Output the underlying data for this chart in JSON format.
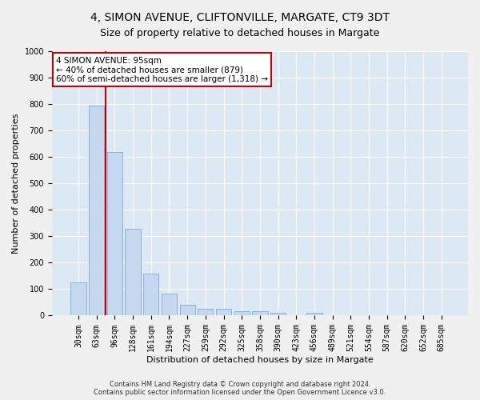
{
  "title": "4, SIMON AVENUE, CLIFTONVILLE, MARGATE, CT9 3DT",
  "subtitle": "Size of property relative to detached houses in Margate",
  "xlabel": "Distribution of detached houses by size in Margate",
  "ylabel": "Number of detached properties",
  "categories": [
    "30sqm",
    "63sqm",
    "96sqm",
    "128sqm",
    "161sqm",
    "194sqm",
    "227sqm",
    "259sqm",
    "292sqm",
    "325sqm",
    "358sqm",
    "390sqm",
    "423sqm",
    "456sqm",
    "489sqm",
    "521sqm",
    "554sqm",
    "587sqm",
    "620sqm",
    "652sqm",
    "685sqm"
  ],
  "values": [
    125,
    795,
    620,
    328,
    160,
    82,
    40,
    27,
    25,
    18,
    16,
    10,
    0,
    9,
    0,
    0,
    0,
    0,
    0,
    0,
    0
  ],
  "bar_color": "#c5d8f0",
  "bar_edge_color": "#7aadd4",
  "vline_color": "#cc0000",
  "annotation_text": "4 SIMON AVENUE: 95sqm\n← 40% of detached houses are smaller (879)\n60% of semi-detached houses are larger (1,318) →",
  "annotation_box_color": "#ffffff",
  "annotation_box_edge": "#cc0000",
  "footnote": "Contains HM Land Registry data © Crown copyright and database right 2024.\nContains public sector information licensed under the Open Government Licence v3.0.",
  "ylim": [
    0,
    1000
  ],
  "yticks": [
    0,
    100,
    200,
    300,
    400,
    500,
    600,
    700,
    800,
    900,
    1000
  ],
  "background_color": "#dde8f5",
  "fig_background_color": "#f0f0f0",
  "grid_color": "#ffffff",
  "title_fontsize": 10,
  "subtitle_fontsize": 9,
  "axis_label_fontsize": 8,
  "tick_fontsize": 7,
  "footnote_fontsize": 6,
  "annotation_fontsize": 7.5
}
